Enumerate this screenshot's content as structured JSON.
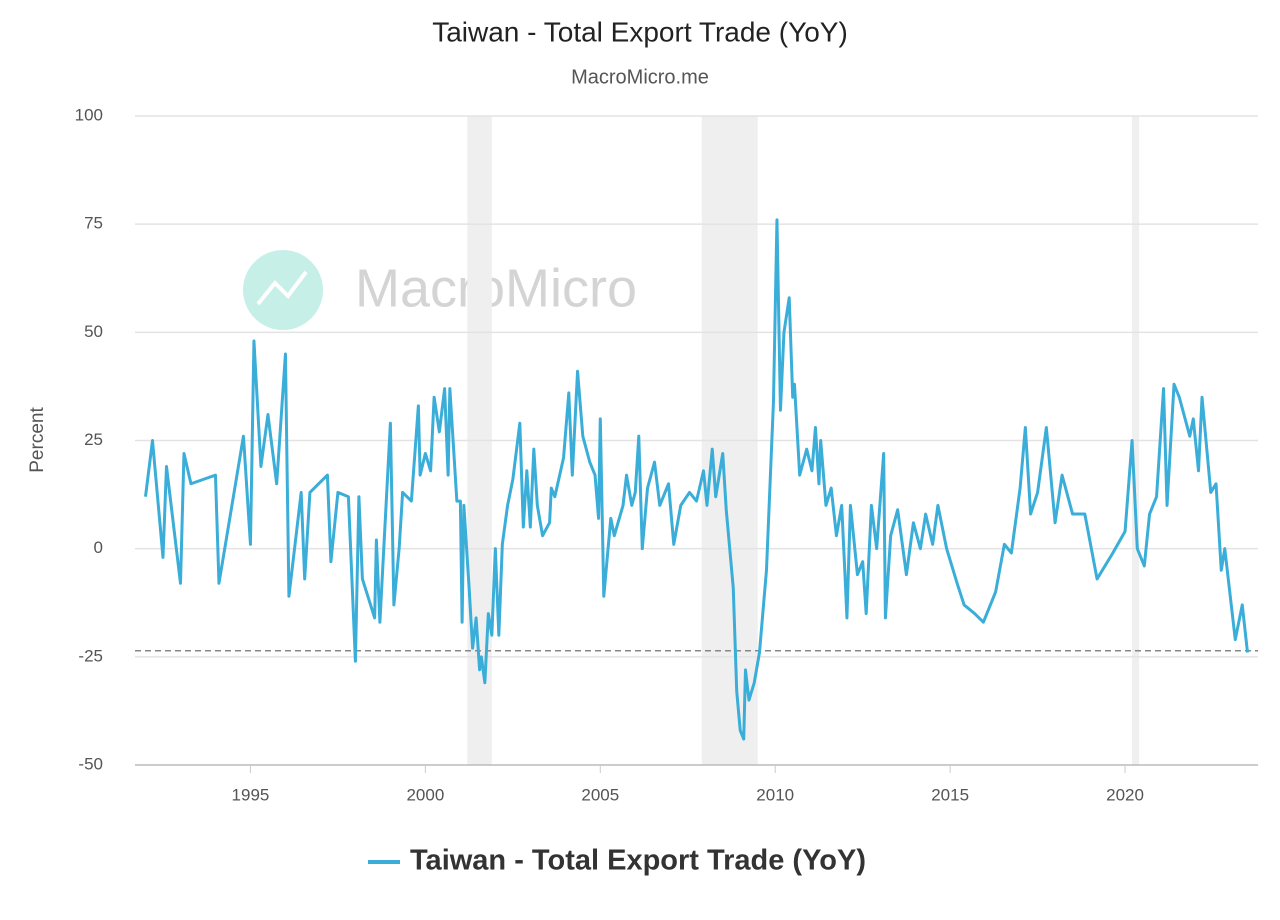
{
  "chart_data": {
    "type": "line",
    "title": "Taiwan - Total Export Trade (YoY)",
    "subtitle": "MacroMicro.me",
    "watermark": "MacroMicro",
    "y_label": "Percent",
    "x": [
      1992.0,
      1992.2,
      1992.5,
      1992.6,
      1993.0,
      1993.1,
      1993.3,
      1994.0,
      1994.1,
      1994.8,
      1995.0,
      1995.1,
      1995.3,
      1995.5,
      1995.75,
      1996.0,
      1996.1,
      1996.45,
      1996.55,
      1996.7,
      1997.2,
      1997.3,
      1997.5,
      1997.8,
      1998.0,
      1998.1,
      1998.2,
      1998.55,
      1998.6,
      1998.7,
      1999.0,
      1999.1,
      1999.25,
      1999.35,
      1999.6,
      1999.8,
      1999.85,
      2000.0,
      2000.15,
      2000.25,
      2000.4,
      2000.55,
      2000.65,
      2000.7,
      2000.9,
      2001.0,
      2001.05,
      2001.1,
      2001.25,
      2001.35,
      2001.45,
      2001.55,
      2001.6,
      2001.7,
      2001.8,
      2001.9,
      2002.0,
      2002.1,
      2002.2,
      2002.35,
      2002.5,
      2002.7,
      2002.8,
      2002.9,
      2003.0,
      2003.1,
      2003.2,
      2003.35,
      2003.55,
      2003.6,
      2003.7,
      2003.95,
      2004.1,
      2004.2,
      2004.35,
      2004.5,
      2004.7,
      2004.85,
      2004.95,
      2005.0,
      2005.1,
      2005.3,
      2005.4,
      2005.65,
      2005.75,
      2005.9,
      2006.0,
      2006.1,
      2006.2,
      2006.35,
      2006.55,
      2006.7,
      2006.95,
      2007.1,
      2007.3,
      2007.55,
      2007.75,
      2007.95,
      2008.05,
      2008.2,
      2008.3,
      2008.5,
      2008.6,
      2008.8,
      2008.9,
      2009.0,
      2009.1,
      2009.15,
      2009.25,
      2009.4,
      2009.55,
      2009.75,
      2009.95,
      2010.05,
      2010.15,
      2010.25,
      2010.4,
      2010.5,
      2010.55,
      2010.7,
      2010.9,
      2011.05,
      2011.15,
      2011.25,
      2011.3,
      2011.45,
      2011.6,
      2011.75,
      2011.9,
      2012.0,
      2012.05,
      2012.15,
      2012.35,
      2012.5,
      2012.6,
      2012.75,
      2012.9,
      2013.1,
      2013.15,
      2013.3,
      2013.5,
      2013.75,
      2013.95,
      2014.15,
      2014.3,
      2014.5,
      2014.65,
      2014.9,
      2015.2,
      2015.4,
      2015.7,
      2015.95,
      2016.3,
      2016.55,
      2016.75,
      2017.0,
      2017.15,
      2017.3,
      2017.5,
      2017.75,
      2018.0,
      2018.2,
      2018.5,
      2018.85,
      2019.2,
      2019.65,
      2020.0,
      2020.2,
      2020.35,
      2020.55,
      2020.7,
      2020.9,
      2021.1,
      2021.2,
      2021.4,
      2021.55,
      2021.85,
      2021.95,
      2022.1,
      2022.2,
      2022.45,
      2022.6,
      2022.75,
      2022.85,
      2023.15,
      2023.35,
      2023.5
    ],
    "series": [
      {
        "name": "Taiwan - Total Export Trade (YoY)",
        "color": "#3aaed8",
        "values": [
          12,
          25,
          -2,
          19,
          -8,
          22,
          15,
          17,
          -8,
          26,
          1,
          48,
          19,
          31,
          15,
          45,
          -11,
          13,
          -7,
          13,
          17,
          -3,
          13,
          12,
          -26,
          12,
          -7,
          -16,
          2,
          -17,
          29,
          -13,
          0,
          13,
          11,
          33,
          17,
          22,
          18,
          35,
          27,
          37,
          17,
          37,
          11,
          11,
          -17,
          10,
          -9,
          -23,
          -16,
          -28,
          -25,
          -31,
          -15,
          -20,
          0,
          -20,
          1,
          10,
          16,
          29,
          5,
          18,
          5,
          23,
          10,
          3,
          6,
          14,
          12,
          21,
          36,
          17,
          41,
          26,
          20,
          17,
          7,
          30,
          -11,
          7,
          3,
          10,
          17,
          10,
          13,
          26,
          0,
          14,
          20,
          10,
          15,
          1,
          10,
          13,
          11,
          18,
          10,
          23,
          12,
          22,
          9,
          -9,
          -33,
          -42,
          -44,
          -28,
          -35,
          -31,
          -24,
          -5,
          34,
          76,
          32,
          50,
          58,
          35,
          38,
          17,
          23,
          18,
          28,
          15,
          25,
          10,
          14,
          3,
          10,
          -7,
          -16,
          10,
          -6,
          -3,
          -15,
          10,
          0,
          22,
          -16,
          3,
          9,
          -6,
          6,
          0,
          8,
          1,
          10,
          0,
          -8,
          -13,
          -15,
          -17,
          -10,
          1,
          -1,
          14,
          28,
          8,
          13,
          28,
          6,
          17,
          8,
          8,
          -7,
          -1,
          4,
          25,
          0,
          -4,
          8,
          12,
          37,
          10,
          38,
          35,
          26,
          30,
          18,
          35,
          13,
          15,
          -5,
          0,
          -21,
          -13,
          -24
        ]
      }
    ],
    "xlim": [
      1991.7,
      2023.8
    ],
    "xticks": [
      1995,
      2000,
      2005,
      2010,
      2015,
      2020
    ],
    "ylim": [
      -50,
      100
    ],
    "yticks": [
      -50,
      -25,
      0,
      25,
      50,
      75,
      100
    ],
    "grid": true,
    "shaded_ranges": [
      [
        2001.2,
        2001.9
      ],
      [
        2007.9,
        2009.5
      ],
      [
        2020.2,
        2020.4
      ]
    ],
    "reference_line": -23.6,
    "legend": "bottom"
  }
}
